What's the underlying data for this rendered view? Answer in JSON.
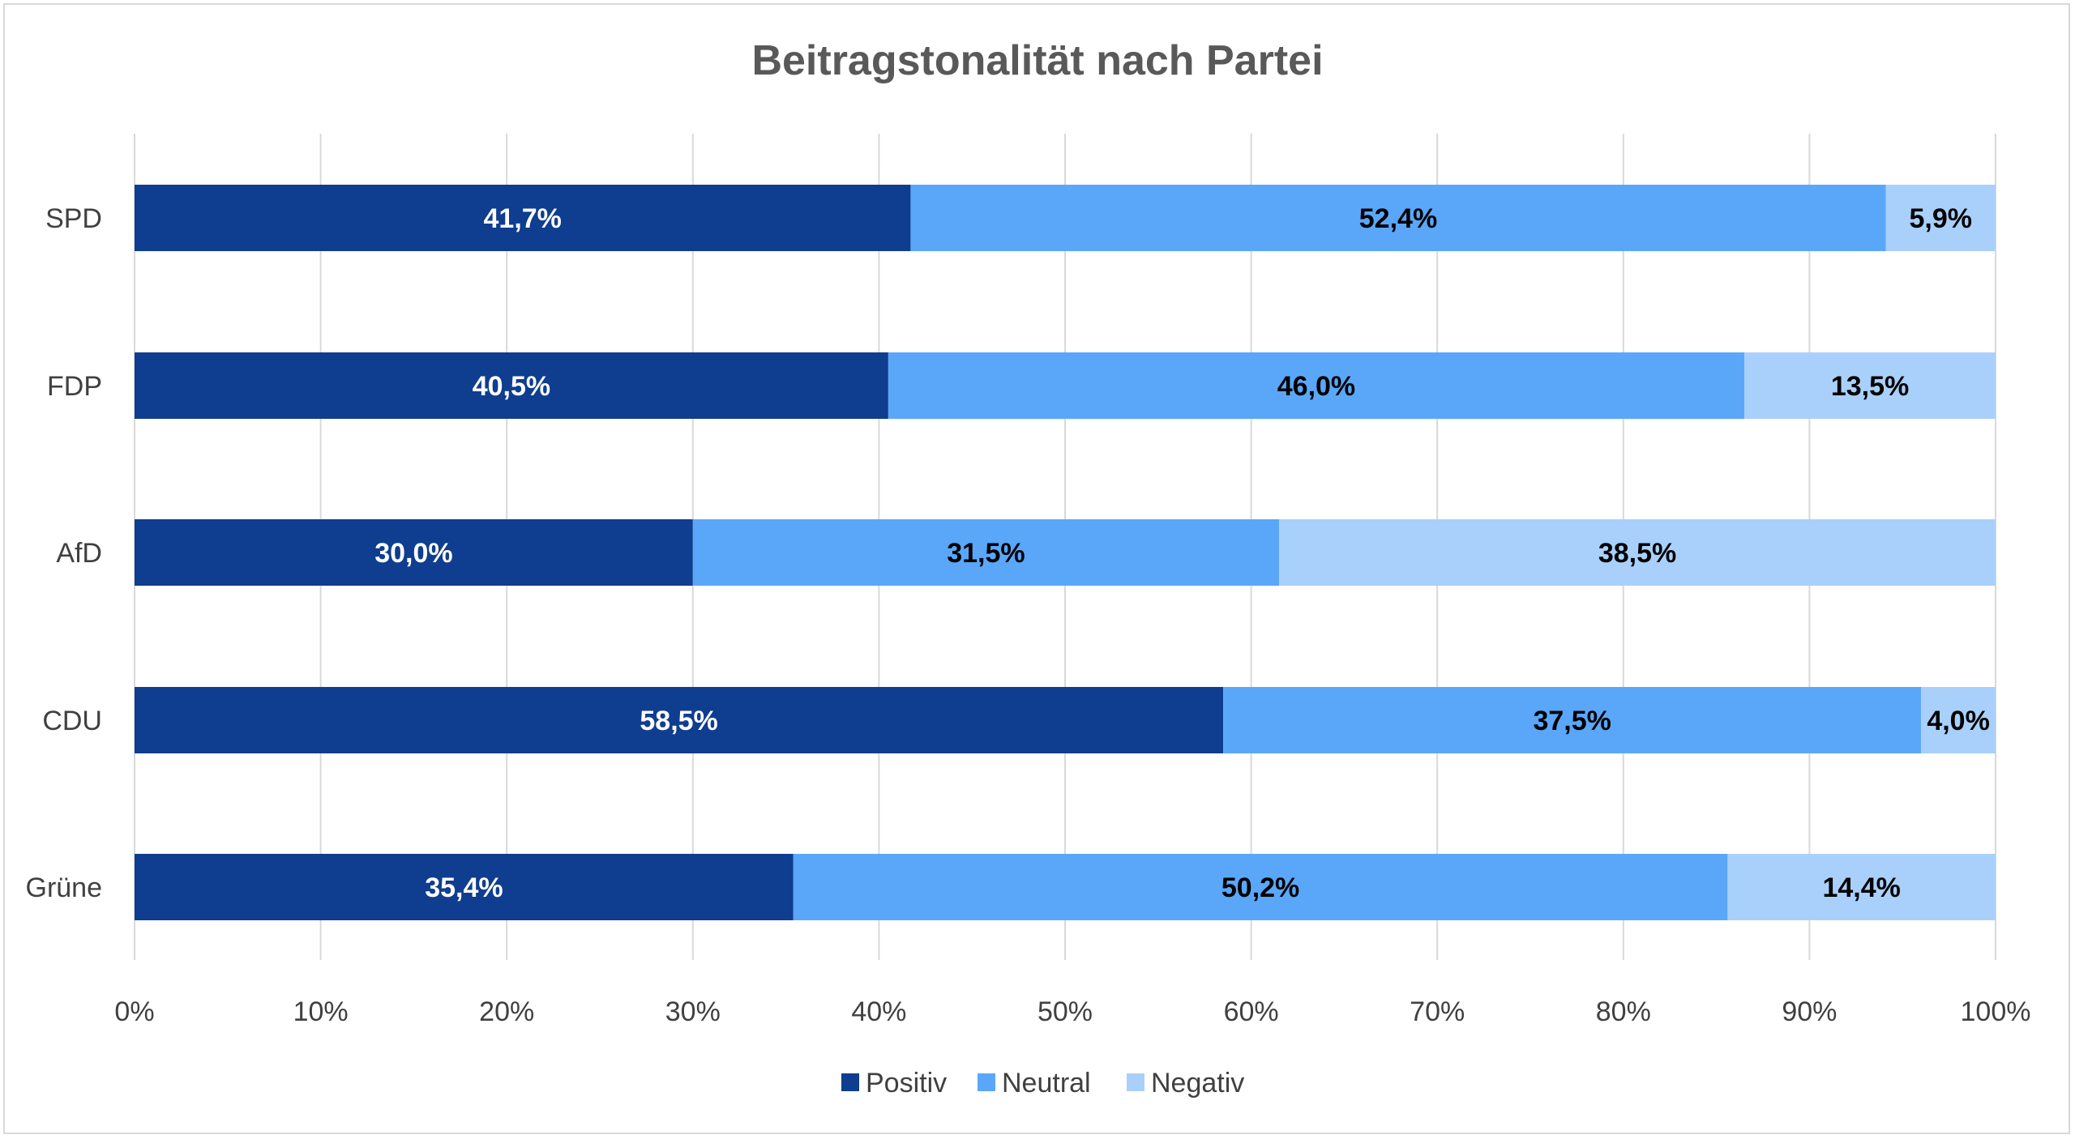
{
  "chart_data": {
    "type": "bar",
    "orientation": "horizontal",
    "stacked": "100%",
    "title": "Beitragstonalität nach Partei",
    "categories": [
      "SPD",
      "FDP",
      "AfD",
      "CDU",
      "Grüne"
    ],
    "series": [
      {
        "name": "Positiv",
        "color": "#0f3d8f",
        "label_color": "#ffffff",
        "values": [
          41.7,
          40.5,
          30.0,
          58.5,
          35.4
        ],
        "labels": [
          "41,7%",
          "40,5%",
          "30,0%",
          "58,5%",
          "35,4%"
        ]
      },
      {
        "name": "Neutral",
        "color": "#5aa7fa",
        "label_color": "#000000",
        "values": [
          52.4,
          46.0,
          31.5,
          37.5,
          50.2
        ],
        "labels": [
          "52,4%",
          "46,0%",
          "31,5%",
          "37,5%",
          "50,2%"
        ]
      },
      {
        "name": "Negativ",
        "color": "#a9d0fb",
        "label_color": "#000000",
        "values": [
          5.9,
          13.5,
          38.5,
          4.0,
          14.4
        ],
        "labels": [
          "5,9%",
          "13,5%",
          "38,5%",
          "4,0%",
          "14,4%"
        ]
      }
    ],
    "xlim": [
      0,
      100
    ],
    "x_ticks": [
      "0%",
      "10%",
      "20%",
      "30%",
      "40%",
      "50%",
      "60%",
      "70%",
      "80%",
      "90%",
      "100%"
    ],
    "grid": true,
    "legend": "bottom"
  }
}
